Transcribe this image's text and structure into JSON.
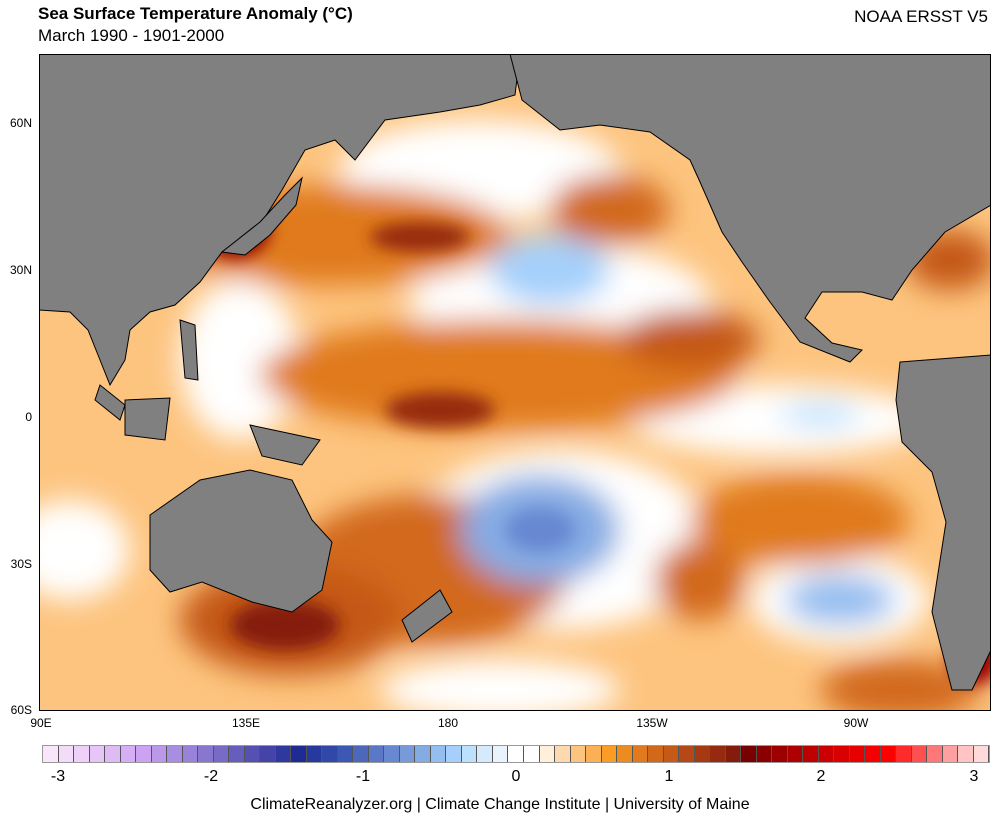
{
  "header": {
    "title": "Sea Surface Temperature Anomaly (°C)",
    "subtitle": "March 1990 - 1901-2000",
    "dataset": "NOAA ERSST V5"
  },
  "map": {
    "lat_labels": [
      "60N",
      "30N",
      "0",
      "30S",
      "60S"
    ],
    "lon_labels": [
      "90E",
      "135E",
      "180",
      "135W",
      "90W"
    ],
    "land_color": "#808080"
  },
  "colorbar": {
    "ticks": [
      "-3",
      "-2",
      "-1",
      "0",
      "1",
      "2",
      "3"
    ],
    "colors": [
      "#f9e6fb",
      "#f3dcf9",
      "#eed0f8",
      "#e6c6f6",
      "#dfbbf5",
      "#d6aef5",
      "#cca3f3",
      "#bb98ea",
      "#a98de2",
      "#9882da",
      "#8877cf",
      "#786bc6",
      "#675dbd",
      "#5650b3",
      "#4443a8",
      "#2f389d",
      "#1e2b94",
      "#263a9d",
      "#3049a8",
      "#3d58b2",
      "#4c67bb",
      "#5a78c6",
      "#6888d2",
      "#779ad9",
      "#85abe3",
      "#94bdf0",
      "#a4d0fb",
      "#bde0fd",
      "#d5eafc",
      "#e9f3fd",
      "#ffffff",
      "#ffffff",
      "#fff0dc",
      "#fed9b0",
      "#fdc47f",
      "#fbb055",
      "#f99d26",
      "#ec8b1f",
      "#e07a1c",
      "#d2691a",
      "#c45918",
      "#b54915",
      "#a53912",
      "#952a0e",
      "#851c0b",
      "#780000",
      "#8a0000",
      "#9c0000",
      "#ad0000",
      "#bd0000",
      "#cc0000",
      "#da0000",
      "#e80000",
      "#f50000",
      "#ff0000",
      "#ff2a2a",
      "#ff5050",
      "#ff7878",
      "#ffa0a0",
      "#ffc4c4",
      "#ffdada"
    ]
  },
  "footer": "ClimateReanalyzer.org | Climate Change Institute | University of Maine"
}
